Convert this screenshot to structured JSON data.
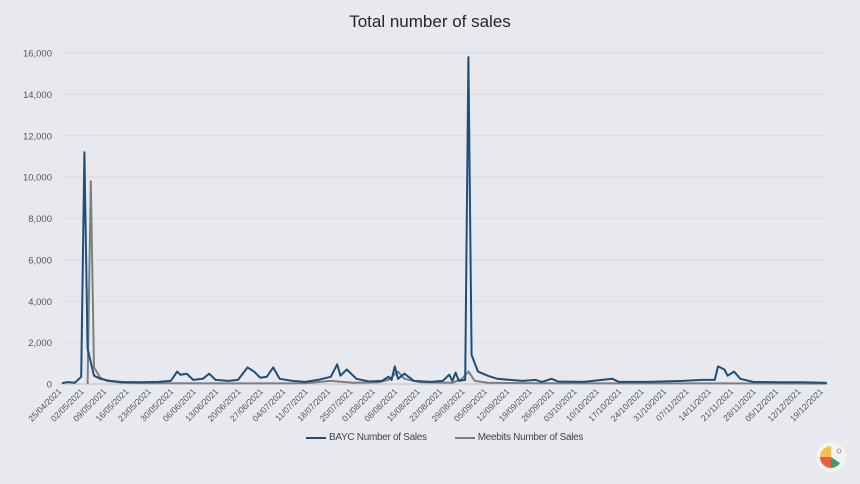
{
  "chart_data": {
    "type": "line",
    "title": "Total number of sales",
    "xlabel": "",
    "ylabel": "",
    "ylim": [
      0,
      16000
    ],
    "yticks": [
      "0",
      "2,000",
      "4,000",
      "6,000",
      "8,000",
      "10,000",
      "12,000",
      "14,000",
      "16,000"
    ],
    "grid": true,
    "legend": "bottom",
    "xticks": [
      "25/04/2021",
      "02/05/2021",
      "09/05/2021",
      "16/05/2021",
      "23/05/2021",
      "30/05/2021",
      "06/06/2021",
      "13/06/2021",
      "20/06/2021",
      "27/06/2021",
      "04/07/2021",
      "11/07/2021",
      "18/07/2021",
      "25/07/2021",
      "01/08/2021",
      "08/08/2021",
      "15/08/2021",
      "22/08/2021",
      "29/08/2021",
      "05/09/2021",
      "12/09/2021",
      "19/09/2021",
      "26/09/2021",
      "03/10/2021",
      "10/10/2021",
      "17/10/2021",
      "24/10/2021",
      "31/10/2021",
      "07/11/2021",
      "14/11/2021",
      "21/11/2021",
      "28/11/2021",
      "05/12/2021",
      "12/12/2021",
      "19/12/2021"
    ],
    "series": [
      {
        "name": "BAYC  Number of Sales",
        "color": "#1f4e79",
        "points": [
          [
            "25/04/2021",
            50
          ],
          [
            "27/04/2021",
            90
          ],
          [
            "29/04/2021",
            60
          ],
          [
            "01/05/2021",
            350
          ],
          [
            "02/05/2021",
            11200
          ],
          [
            "03/05/2021",
            1700
          ],
          [
            "05/05/2021",
            400
          ],
          [
            "07/05/2021",
            250
          ],
          [
            "10/05/2021",
            150
          ],
          [
            "14/05/2021",
            90
          ],
          [
            "20/05/2021",
            80
          ],
          [
            "25/05/2021",
            100
          ],
          [
            "29/05/2021",
            150
          ],
          [
            "31/05/2021",
            600
          ],
          [
            "01/06/2021",
            450
          ],
          [
            "03/06/2021",
            500
          ],
          [
            "05/06/2021",
            200
          ],
          [
            "08/06/2021",
            250
          ],
          [
            "10/06/2021",
            500
          ],
          [
            "12/06/2021",
            200
          ],
          [
            "16/06/2021",
            150
          ],
          [
            "19/06/2021",
            200
          ],
          [
            "22/06/2021",
            800
          ],
          [
            "24/06/2021",
            600
          ],
          [
            "26/06/2021",
            300
          ],
          [
            "28/06/2021",
            350
          ],
          [
            "30/06/2021",
            800
          ],
          [
            "02/07/2021",
            250
          ],
          [
            "06/07/2021",
            150
          ],
          [
            "10/07/2021",
            100
          ],
          [
            "14/07/2021",
            200
          ],
          [
            "18/07/2021",
            350
          ],
          [
            "20/07/2021",
            950
          ],
          [
            "21/07/2021",
            400
          ],
          [
            "23/07/2021",
            700
          ],
          [
            "26/07/2021",
            250
          ],
          [
            "30/07/2021",
            120
          ],
          [
            "03/08/2021",
            150
          ],
          [
            "05/08/2021",
            350
          ],
          [
            "06/08/2021",
            200
          ],
          [
            "07/08/2021",
            850
          ],
          [
            "08/08/2021",
            250
          ],
          [
            "10/08/2021",
            500
          ],
          [
            "13/08/2021",
            150
          ],
          [
            "18/08/2021",
            100
          ],
          [
            "22/08/2021",
            150
          ],
          [
            "24/08/2021",
            450
          ],
          [
            "25/08/2021",
            150
          ],
          [
            "26/08/2021",
            550
          ],
          [
            "27/08/2021",
            150
          ],
          [
            "29/08/2021",
            200
          ],
          [
            "30/08/2021",
            15800
          ],
          [
            "31/08/2021",
            1400
          ],
          [
            "02/09/2021",
            600
          ],
          [
            "05/09/2021",
            400
          ],
          [
            "08/09/2021",
            250
          ],
          [
            "12/09/2021",
            200
          ],
          [
            "16/09/2021",
            150
          ],
          [
            "20/09/2021",
            200
          ],
          [
            "22/09/2021",
            100
          ],
          [
            "25/09/2021",
            250
          ],
          [
            "27/09/2021",
            120
          ],
          [
            "05/10/2021",
            100
          ],
          [
            "14/10/2021",
            250
          ],
          [
            "16/10/2021",
            100
          ],
          [
            "25/10/2021",
            100
          ],
          [
            "05/11/2021",
            150
          ],
          [
            "11/11/2021",
            200
          ],
          [
            "15/11/2021",
            200
          ],
          [
            "16/11/2021",
            850
          ],
          [
            "18/11/2021",
            700
          ],
          [
            "19/11/2021",
            400
          ],
          [
            "21/11/2021",
            600
          ],
          [
            "23/11/2021",
            250
          ],
          [
            "27/11/2021",
            100
          ],
          [
            "05/12/2021",
            80
          ],
          [
            "12/12/2021",
            80
          ],
          [
            "19/12/2021",
            60
          ],
          [
            "20/12/2021",
            50
          ]
        ]
      },
      {
        "name": "Meebits  Number of Sales",
        "color": "#7f7f7f",
        "points": [
          [
            "03/05/2021",
            0
          ],
          [
            "04/05/2021",
            9800
          ],
          [
            "05/05/2021",
            800
          ],
          [
            "07/05/2021",
            300
          ],
          [
            "09/05/2021",
            150
          ],
          [
            "14/05/2021",
            60
          ],
          [
            "25/05/2021",
            40
          ],
          [
            "15/06/2021",
            30
          ],
          [
            "10/07/2021",
            40
          ],
          [
            "18/07/2021",
            150
          ],
          [
            "25/07/2021",
            60
          ],
          [
            "02/08/2021",
            80
          ],
          [
            "05/08/2021",
            200
          ],
          [
            "08/08/2021",
            600
          ],
          [
            "10/08/2021",
            250
          ],
          [
            "15/08/2021",
            80
          ],
          [
            "25/08/2021",
            60
          ],
          [
            "28/08/2021",
            250
          ],
          [
            "30/08/2021",
            600
          ],
          [
            "01/09/2021",
            150
          ],
          [
            "05/09/2021",
            60
          ],
          [
            "20/09/2021",
            40
          ],
          [
            "20/10/2021",
            30
          ],
          [
            "20/11/2021",
            30
          ],
          [
            "20/12/2021",
            20
          ]
        ]
      }
    ]
  }
}
